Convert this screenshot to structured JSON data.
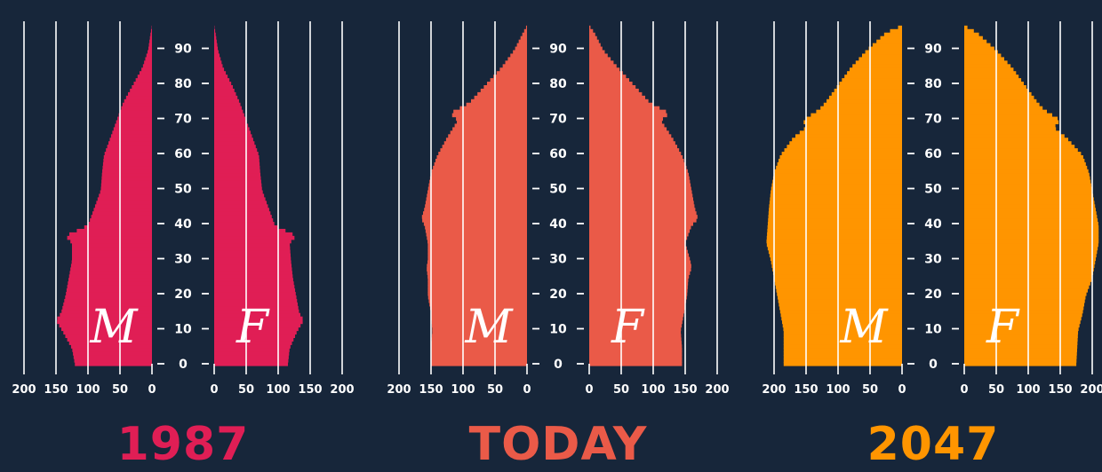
{
  "colors": {
    "background": "#17263a",
    "grid": "#ffffff",
    "text": "#ffffff"
  },
  "chart_data": [
    {
      "type": "bar",
      "orientation": "horizontal-mirrored",
      "title": "1987",
      "color": "#e01e55",
      "male_label": "M",
      "female_label": "F",
      "age_ticks": [
        "0",
        "10",
        "20",
        "30",
        "40",
        "50",
        "60",
        "70",
        "80",
        "90"
      ],
      "x_ticks": [
        "0",
        "50",
        "100",
        "150",
        "200"
      ],
      "xlim": [
        0,
        200
      ],
      "ylim": [
        0,
        97
      ],
      "age_nodes": [
        0,
        5,
        10,
        13,
        15,
        20,
        25,
        30,
        35,
        37,
        40,
        45,
        50,
        55,
        60,
        65,
        70,
        75,
        80,
        85,
        90,
        95,
        97
      ],
      "male_nodes": [
        120,
        125,
        140,
        150,
        142,
        135,
        130,
        125,
        125,
        135,
        100,
        90,
        80,
        78,
        75,
        65,
        55,
        45,
        30,
        15,
        6,
        2,
        0
      ],
      "female_nodes": [
        115,
        118,
        130,
        140,
        133,
        128,
        123,
        120,
        118,
        128,
        95,
        85,
        75,
        72,
        70,
        60,
        50,
        40,
        28,
        14,
        6,
        2,
        0
      ]
    },
    {
      "type": "bar",
      "orientation": "horizontal-mirrored",
      "title": "TODAY",
      "color": "#ea5a48",
      "male_label": "M",
      "female_label": "F",
      "age_ticks": [
        "0",
        "10",
        "20",
        "30",
        "40",
        "50",
        "60",
        "70",
        "80",
        "90"
      ],
      "x_ticks": [
        "0",
        "50",
        "100",
        "150",
        "200"
      ],
      "xlim": [
        0,
        200
      ],
      "ylim": [
        0,
        97
      ],
      "age_nodes": [
        0,
        5,
        10,
        15,
        20,
        25,
        28,
        30,
        35,
        40,
        42,
        45,
        50,
        55,
        60,
        65,
        70,
        72,
        75,
        80,
        85,
        90,
        95,
        97
      ],
      "male_nodes": [
        150,
        150,
        148,
        150,
        155,
        155,
        157,
        155,
        155,
        160,
        165,
        160,
        155,
        150,
        140,
        125,
        108,
        120,
        90,
        65,
        40,
        20,
        6,
        0
      ],
      "female_nodes": [
        145,
        145,
        143,
        148,
        153,
        155,
        160,
        158,
        150,
        160,
        170,
        165,
        160,
        155,
        145,
        130,
        112,
        125,
        95,
        70,
        45,
        22,
        8,
        0
      ]
    },
    {
      "type": "bar",
      "orientation": "horizontal-mirrored",
      "title": "2047",
      "color": "#ff9500",
      "male_label": "M",
      "female_label": "F",
      "age_ticks": [
        "0",
        "10",
        "20",
        "30",
        "40",
        "50",
        "60",
        "70",
        "80",
        "90"
      ],
      "x_ticks": [
        "0",
        "50",
        "100",
        "150",
        "200"
      ],
      "xlim": [
        0,
        200
      ],
      "ylim": [
        0,
        97
      ],
      "age_nodes": [
        0,
        10,
        15,
        20,
        25,
        30,
        35,
        40,
        45,
        50,
        55,
        60,
        65,
        68,
        70,
        73,
        75,
        80,
        85,
        90,
        95,
        97
      ],
      "male_nodes": [
        185,
        185,
        190,
        195,
        200,
        205,
        212,
        210,
        208,
        205,
        200,
        190,
        170,
        150,
        155,
        130,
        120,
        100,
        80,
        55,
        25,
        0
      ],
      "female_nodes": [
        175,
        178,
        185,
        190,
        200,
        205,
        210,
        210,
        205,
        200,
        195,
        185,
        160,
        140,
        150,
        125,
        115,
        95,
        75,
        50,
        20,
        0
      ]
    }
  ]
}
